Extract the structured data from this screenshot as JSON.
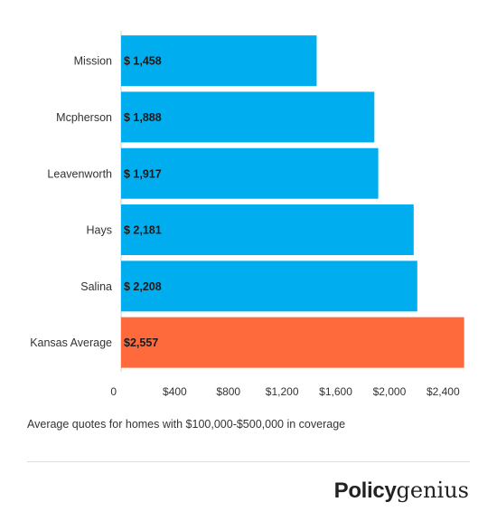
{
  "chart_data": {
    "type": "bar",
    "orientation": "horizontal",
    "categories": [
      "Mission",
      "Mcpherson",
      "Leavenworth",
      "Hays",
      "Salina",
      "Kansas Average"
    ],
    "values": [
      1458,
      1888,
      1917,
      2181,
      2208,
      2557
    ],
    "data_labels": [
      "$ 1,458",
      "$ 1,888",
      "$ 1,917",
      "$ 2,181",
      "$ 2,208",
      "$2,557"
    ],
    "xlim": [
      0,
      2600
    ],
    "x_ticks": [
      0,
      400,
      800,
      1200,
      1600,
      2000,
      2400
    ],
    "x_tick_labels": [
      "0",
      "$400",
      "$800",
      "$1,200",
      "$1,600",
      "$2,000",
      "$2,400"
    ],
    "colors": {
      "default": "#00AEEF",
      "highlight": "#FF6A3D",
      "axis": "#cfcfcf"
    },
    "highlight_index": 5,
    "grid": false,
    "legend": "none"
  },
  "caption": "Average quotes for homes with $100,000-$500,000 in coverage",
  "brand": {
    "strong": "Policy",
    "light": "genius"
  }
}
